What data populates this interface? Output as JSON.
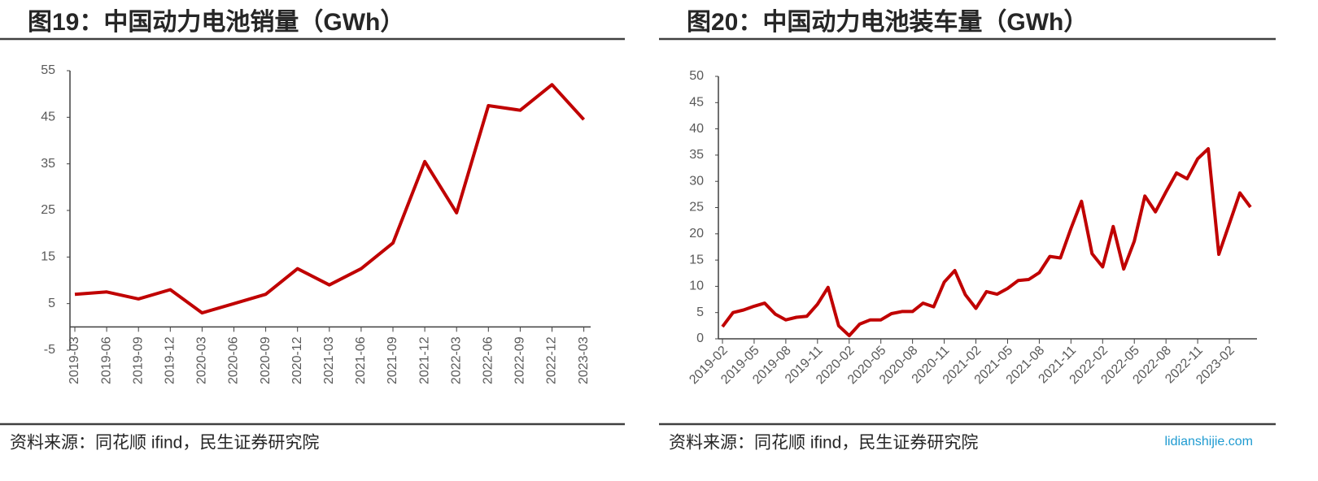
{
  "chart_data": [
    {
      "type": "line",
      "title": "图19：中国动力电池销量（GWh）",
      "categories": [
        "2019-03",
        "2019-06",
        "2019-09",
        "2019-12",
        "2020-03",
        "2020-06",
        "2020-09",
        "2020-12",
        "2021-03",
        "2021-06",
        "2021-09",
        "2021-12",
        "2022-03",
        "2022-06",
        "2022-09",
        "2022-12",
        "2023-03"
      ],
      "series": [
        {
          "name": "中国动力电池销量",
          "color": "#c00000",
          "values": [
            7,
            7.5,
            6,
            8,
            3,
            5,
            7,
            12.5,
            9,
            12.5,
            18,
            35.5,
            24.5,
            47.5,
            46.5,
            52,
            44.5
          ]
        }
      ],
      "ylim": [
        -5,
        55
      ],
      "yticks": [
        -5,
        5,
        15,
        25,
        35,
        45,
        55
      ],
      "source": "资料来源：同花顺 ifind，民生证券研究院"
    },
    {
      "type": "line",
      "title": "图20：中国动力电池装车量（GWh）",
      "categories": [
        "2019-02",
        null,
        null,
        "2019-05",
        null,
        null,
        "2019-08",
        null,
        null,
        "2019-11",
        null,
        null,
        "2020-02",
        null,
        null,
        "2020-05",
        null,
        null,
        "2020-08",
        null,
        null,
        "2020-11",
        null,
        null,
        "2021-02",
        null,
        null,
        "2021-05",
        null,
        null,
        "2021-08",
        null,
        null,
        "2021-11",
        null,
        null,
        "2022-02",
        null,
        null,
        "2022-05",
        null,
        null,
        "2022-08",
        null,
        null,
        "2022-11",
        null,
        null,
        "2023-02",
        null,
        null
      ],
      "series": [
        {
          "name": "中国动力电池装车量",
          "color": "#c00000",
          "values": [
            2.3,
            5,
            5.5,
            6.2,
            6.8,
            4.7,
            3.6,
            4.1,
            4.3,
            6.6,
            9.8,
            2.5,
            0.6,
            2.8,
            3.6,
            3.6,
            4.8,
            5.2,
            5.2,
            6.8,
            6.1,
            10.8,
            13,
            8.4,
            5.8,
            9,
            8.5,
            9.6,
            11.1,
            11.3,
            12.6,
            15.7,
            15.4,
            21,
            26.2,
            16.2,
            13.7,
            21.4,
            13.3,
            18.6,
            27.2,
            24.2,
            28,
            31.6,
            30.5,
            34.3,
            36.2,
            16.1,
            21.9,
            27.8,
            25.1
          ]
        }
      ],
      "ylim": [
        0,
        50
      ],
      "yticks": [
        0,
        5,
        10,
        15,
        20,
        25,
        30,
        35,
        40,
        45,
        50
      ],
      "source": "资料来源：同花顺 ifind，民生证券研究院"
    }
  ],
  "watermark": "lidianshijie.com"
}
